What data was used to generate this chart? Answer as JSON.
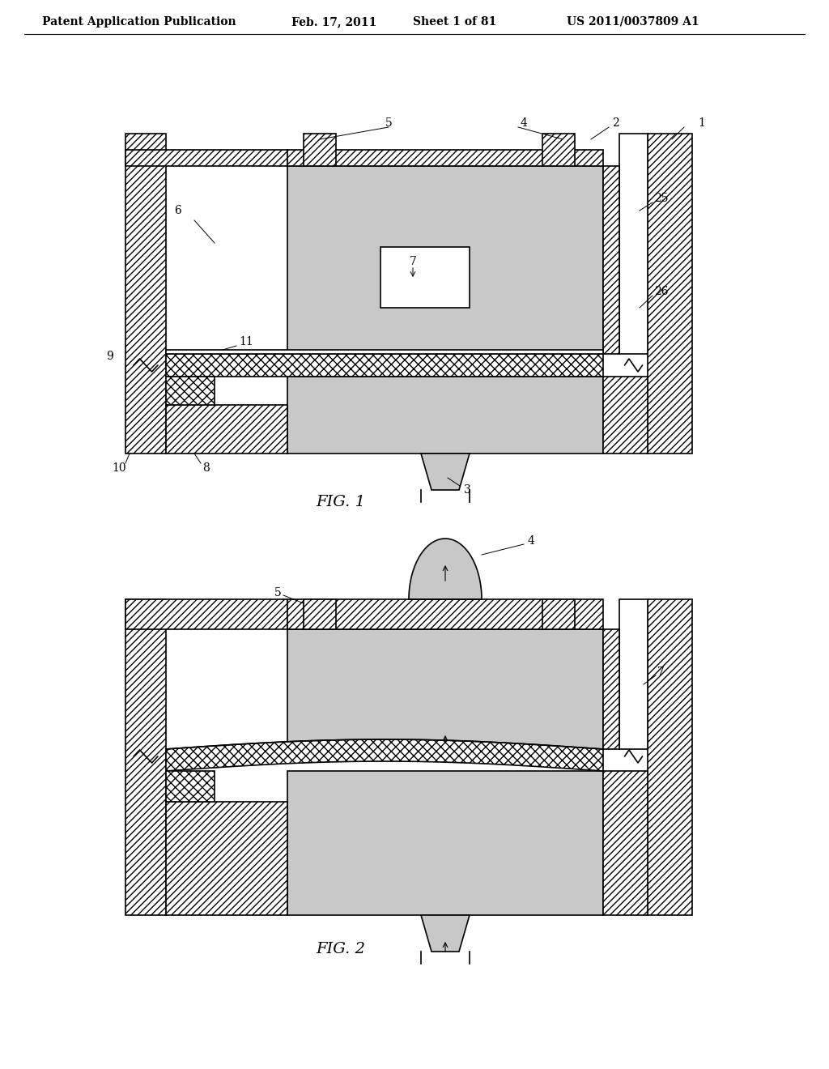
{
  "bg_color": "#ffffff",
  "header_text": "Patent Application Publication",
  "header_date": "Feb. 17, 2011",
  "header_sheet": "Sheet 1 of 81",
  "header_patent": "US 2011/0037809 A1",
  "fig1_label": "FIG. 1",
  "fig2_label": "FIG. 2",
  "dot_fill": "#c8c8c8",
  "line_color": "#000000",
  "lw": 1.2,
  "thin_lw": 0.7
}
